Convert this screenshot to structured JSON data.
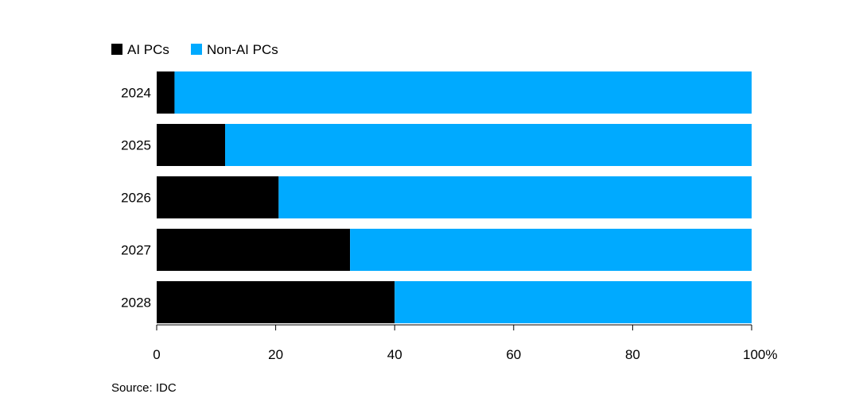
{
  "chart_data": {
    "type": "bar",
    "orientation": "horizontal",
    "stacked": true,
    "categories": [
      "2024",
      "2025",
      "2026",
      "2027",
      "2028"
    ],
    "series": [
      {
        "name": "AI PCs",
        "color": "#000000",
        "values": [
          3,
          11.5,
          20.5,
          32.5,
          40
        ]
      },
      {
        "name": "Non-AI PCs",
        "color": "#00aaff",
        "values": [
          97,
          88.5,
          79.5,
          67.5,
          60
        ]
      }
    ],
    "xlim": [
      0,
      100
    ],
    "xticks": [
      0,
      20,
      40,
      60,
      80,
      100
    ],
    "xtick_labels": [
      "0",
      "20",
      "40",
      "60",
      "80",
      "100%"
    ],
    "legend_position": "top-left",
    "grid": false
  },
  "source": "Source: IDC"
}
